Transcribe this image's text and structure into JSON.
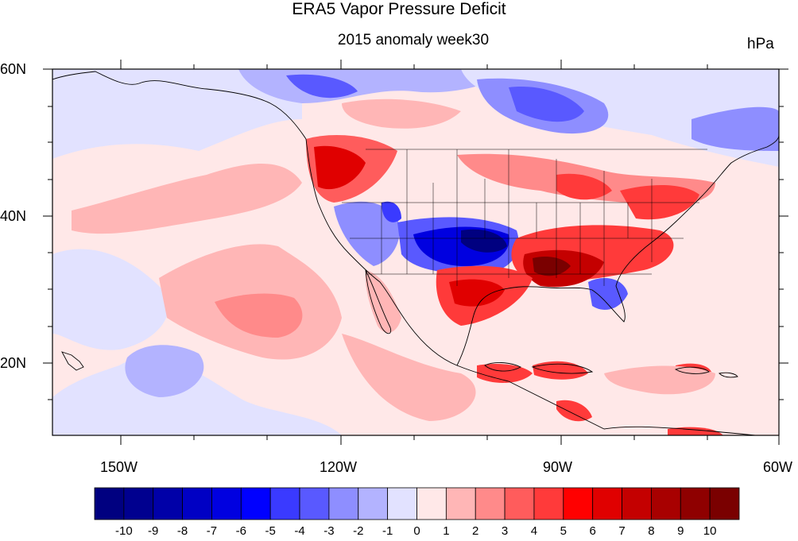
{
  "title": "ERA5 Vapor Pressure Deficit",
  "subtitle": "2015 anomaly week30",
  "units": "hPa",
  "lat_labels": [
    "60N",
    "40N",
    "20N"
  ],
  "lon_labels": [
    "150W",
    "120W",
    "90W",
    "60W"
  ],
  "colorbar": {
    "labels": [
      "-10",
      "-9",
      "-8",
      "-7",
      "-6",
      "-5",
      "-4",
      "-3",
      "-2",
      "-1",
      "0",
      "1",
      "2",
      "3",
      "4",
      "5",
      "6",
      "7",
      "8",
      "9",
      "10"
    ],
    "colors": [
      "#000080",
      "#00008f",
      "#0000a8",
      "#0000c4",
      "#0000e0",
      "#0000ff",
      "#3a3aff",
      "#5959ff",
      "#8e8eff",
      "#b3b3ff",
      "#e2e2ff",
      "#ffe8e8",
      "#ffb6b6",
      "#ff8a8a",
      "#ff5c5c",
      "#ff3a3a",
      "#ff0000",
      "#e00000",
      "#c40000",
      "#a80000",
      "#8f0000",
      "#7a0000"
    ]
  },
  "map_extent": {
    "lon": [
      -160,
      -60
    ],
    "lat": [
      10,
      60
    ]
  }
}
